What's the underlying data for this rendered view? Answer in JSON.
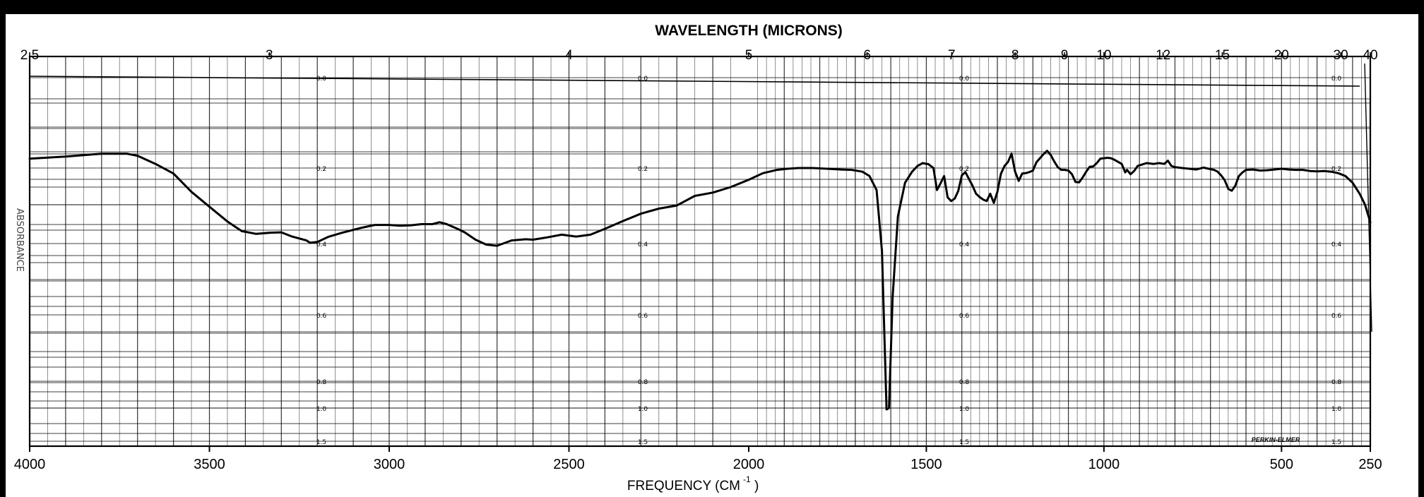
{
  "chart_data": {
    "type": "line",
    "title": "WAVELENGTH (MICRONS)",
    "xlabel": "FREQUENCY (CM",
    "xlabel_superscript": "-1",
    "xlabel_close": ")",
    "ylabel": "ABSORBANCE",
    "x_direction": "decreasing",
    "xlim": [
      4000,
      250
    ],
    "ylim": [
      0,
      1.5
    ],
    "grid": true,
    "frequency_ticks": [
      "4000",
      "3500",
      "3000",
      "2500",
      "2000",
      "1500",
      "1000",
      "500",
      "250"
    ],
    "wavelength_ticks": [
      "2.5",
      "3",
      "4",
      "5",
      "6",
      "7",
      "8",
      "9",
      "10",
      "12",
      "15",
      "20",
      "30",
      "40"
    ],
    "absorbance_labels": [
      "0.0",
      "0.2",
      "0.4",
      "0.6",
      "0.8",
      "1.0",
      "1.5"
    ],
    "brand": "PERKIN-ELMER",
    "series": [
      {
        "points": [
          [
            4000,
            0.177
          ],
          [
            3900,
            0.172
          ],
          [
            3800,
            0.165
          ],
          [
            3730,
            0.165
          ],
          [
            3700,
            0.17
          ],
          [
            3650,
            0.19
          ],
          [
            3600,
            0.215
          ],
          [
            3550,
            0.265
          ],
          [
            3500,
            0.305
          ],
          [
            3450,
            0.343
          ],
          [
            3410,
            0.368
          ],
          [
            3370,
            0.375
          ],
          [
            3330,
            0.372
          ],
          [
            3300,
            0.371
          ],
          [
            3270,
            0.382
          ],
          [
            3230,
            0.392
          ],
          [
            3220,
            0.398
          ],
          [
            3200,
            0.396
          ],
          [
            3170,
            0.383
          ],
          [
            3130,
            0.372
          ],
          [
            3080,
            0.36
          ],
          [
            3040,
            0.352
          ],
          [
            3000,
            0.352
          ],
          [
            2970,
            0.354
          ],
          [
            2940,
            0.353
          ],
          [
            2910,
            0.35
          ],
          [
            2880,
            0.35
          ],
          [
            2860,
            0.345
          ],
          [
            2840,
            0.35
          ],
          [
            2810,
            0.362
          ],
          [
            2790,
            0.371
          ],
          [
            2760,
            0.39
          ],
          [
            2730,
            0.403
          ],
          [
            2700,
            0.406
          ],
          [
            2680,
            0.399
          ],
          [
            2660,
            0.392
          ],
          [
            2620,
            0.389
          ],
          [
            2600,
            0.39
          ],
          [
            2560,
            0.384
          ],
          [
            2520,
            0.377
          ],
          [
            2480,
            0.382
          ],
          [
            2440,
            0.377
          ],
          [
            2400,
            0.362
          ],
          [
            2350,
            0.342
          ],
          [
            2300,
            0.323
          ],
          [
            2250,
            0.31
          ],
          [
            2200,
            0.302
          ],
          [
            2150,
            0.276
          ],
          [
            2100,
            0.267
          ],
          [
            2050,
            0.252
          ],
          [
            2000,
            0.232
          ],
          [
            1960,
            0.214
          ],
          [
            1920,
            0.205
          ],
          [
            1890,
            0.202
          ],
          [
            1860,
            0.2
          ],
          [
            1820,
            0.2
          ],
          [
            1780,
            0.202
          ],
          [
            1740,
            0.204
          ],
          [
            1710,
            0.205
          ],
          [
            1680,
            0.21
          ],
          [
            1660,
            0.222
          ],
          [
            1640,
            0.26
          ],
          [
            1625,
            0.42
          ],
          [
            1612,
            1.02
          ],
          [
            1605,
            1.0
          ],
          [
            1595,
            0.55
          ],
          [
            1580,
            0.33
          ],
          [
            1560,
            0.24
          ],
          [
            1540,
            0.21
          ],
          [
            1525,
            0.195
          ],
          [
            1510,
            0.188
          ],
          [
            1500,
            0.19
          ],
          [
            1495,
            0.19
          ],
          [
            1480,
            0.2
          ],
          [
            1470,
            0.26
          ],
          [
            1460,
            0.242
          ],
          [
            1450,
            0.222
          ],
          [
            1440,
            0.28
          ],
          [
            1430,
            0.29
          ],
          [
            1420,
            0.283
          ],
          [
            1410,
            0.262
          ],
          [
            1400,
            0.22
          ],
          [
            1390,
            0.211
          ],
          [
            1380,
            0.23
          ],
          [
            1370,
            0.248
          ],
          [
            1360,
            0.27
          ],
          [
            1350,
            0.279
          ],
          [
            1340,
            0.286
          ],
          [
            1330,
            0.29
          ],
          [
            1320,
            0.27
          ],
          [
            1310,
            0.295
          ],
          [
            1300,
            0.265
          ],
          [
            1290,
            0.216
          ],
          [
            1280,
            0.195
          ],
          [
            1270,
            0.185
          ],
          [
            1260,
            0.165
          ],
          [
            1250,
            0.21
          ],
          [
            1240,
            0.235
          ],
          [
            1230,
            0.215
          ],
          [
            1220,
            0.214
          ],
          [
            1210,
            0.211
          ],
          [
            1200,
            0.207
          ],
          [
            1190,
            0.186
          ],
          [
            1180,
            0.176
          ],
          [
            1170,
            0.166
          ],
          [
            1160,
            0.158
          ],
          [
            1150,
            0.168
          ],
          [
            1140,
            0.184
          ],
          [
            1130,
            0.198
          ],
          [
            1120,
            0.205
          ],
          [
            1110,
            0.205
          ],
          [
            1100,
            0.207
          ],
          [
            1090,
            0.217
          ],
          [
            1080,
            0.238
          ],
          [
            1070,
            0.239
          ],
          [
            1060,
            0.226
          ],
          [
            1050,
            0.21
          ],
          [
            1040,
            0.197
          ],
          [
            1030,
            0.196
          ],
          [
            1020,
            0.188
          ],
          [
            1010,
            0.177
          ],
          [
            1000,
            0.176
          ],
          [
            990,
            0.175
          ],
          [
            980,
            0.176
          ],
          [
            970,
            0.18
          ],
          [
            960,
            0.185
          ],
          [
            950,
            0.19
          ],
          [
            945,
            0.2
          ],
          [
            940,
            0.212
          ],
          [
            935,
            0.205
          ],
          [
            925,
            0.217
          ],
          [
            915,
            0.208
          ],
          [
            905,
            0.195
          ],
          [
            895,
            0.192
          ],
          [
            880,
            0.188
          ],
          [
            860,
            0.19
          ],
          [
            845,
            0.188
          ],
          [
            830,
            0.19
          ],
          [
            820,
            0.182
          ],
          [
            810,
            0.195
          ],
          [
            800,
            0.198
          ],
          [
            780,
            0.2
          ],
          [
            760,
            0.202
          ],
          [
            740,
            0.204
          ],
          [
            720,
            0.199
          ],
          [
            700,
            0.203
          ],
          [
            690,
            0.205
          ],
          [
            680,
            0.21
          ],
          [
            670,
            0.22
          ],
          [
            660,
            0.233
          ],
          [
            650,
            0.257
          ],
          [
            640,
            0.262
          ],
          [
            630,
            0.248
          ],
          [
            620,
            0.222
          ],
          [
            610,
            0.212
          ],
          [
            600,
            0.205
          ],
          [
            580,
            0.204
          ],
          [
            560,
            0.207
          ],
          [
            540,
            0.206
          ],
          [
            520,
            0.204
          ],
          [
            500,
            0.202
          ],
          [
            480,
            0.204
          ],
          [
            460,
            0.205
          ],
          [
            440,
            0.205
          ],
          [
            420,
            0.208
          ],
          [
            400,
            0.209
          ],
          [
            380,
            0.208
          ],
          [
            360,
            0.21
          ],
          [
            340,
            0.214
          ],
          [
            320,
            0.222
          ],
          [
            300,
            0.24
          ],
          [
            280,
            0.27
          ],
          [
            265,
            0.3
          ],
          [
            250,
            0.345
          ]
        ]
      }
    ]
  }
}
